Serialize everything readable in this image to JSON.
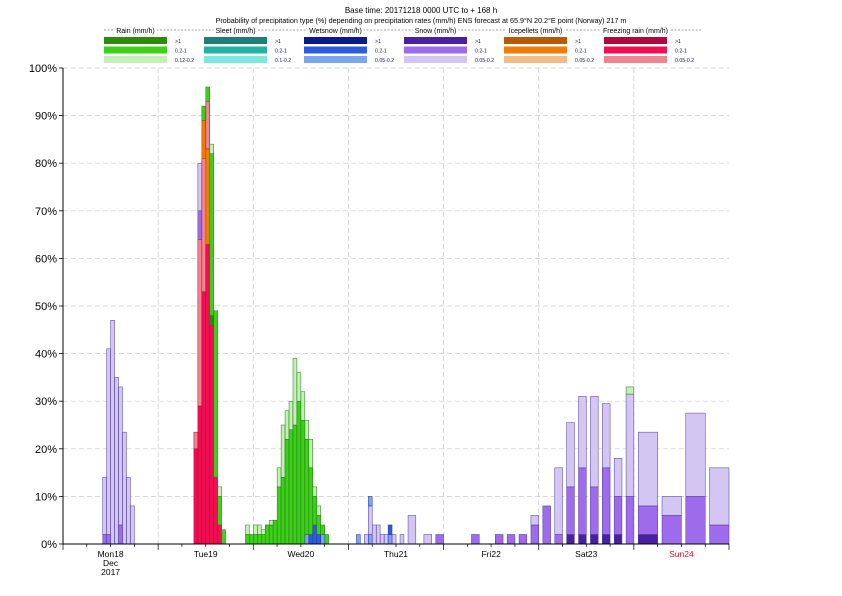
{
  "header": {
    "line1": "Base time: 20171218 0000 UTC to + 168 h",
    "line2": "Probability of precipitation type (%) depending on precipitation rates (mm/h) ENS forecast at 65.9°N  20.2°E point (Norway) 217 m"
  },
  "legend": {
    "groups": [
      {
        "title": "Rain (mm/h)",
        "colors": [
          "#2e8b0a",
          "#3ecf1a",
          "#c4f0b8"
        ],
        "labels": [
          ">1",
          "0.2-1",
          "0.12-0.2"
        ]
      },
      {
        "title": "Sleet (mm/h)",
        "colors": [
          "#1d7f77",
          "#22b2a3",
          "#7fe7dc"
        ],
        "labels": [
          ">1",
          "0.2-1",
          "0.1-0.2"
        ]
      },
      {
        "title": "Wetsnow (mm/h)",
        "colors": [
          "#0a1a8a",
          "#2d5bdc",
          "#7ba5ee"
        ],
        "labels": [
          ">1",
          "0.2-1",
          "0.05-0.2"
        ]
      },
      {
        "title": "Snow (mm/h)",
        "colors": [
          "#4a1fa0",
          "#9d6bec",
          "#d4c6f2"
        ],
        "labels": [
          ">1",
          "0.2-1",
          "0.05-0.2"
        ]
      },
      {
        "title": "Icepellets (mm/h)",
        "colors": [
          "#b85a05",
          "#ef7c0a",
          "#f0bd8a"
        ],
        "labels": [
          ">1",
          "0.2-1",
          "0.05-0.2"
        ]
      },
      {
        "title": "Freezing rain (mm/h)",
        "colors": [
          "#b0083e",
          "#ef0f52",
          "#f0848f"
        ],
        "labels": [
          ">1",
          "0.2-1",
          "0.05-0.2"
        ]
      }
    ]
  },
  "chart_data": {
    "type": "bar",
    "stacked": true,
    "ylim": [
      0,
      100
    ],
    "yticks": [
      "0%",
      "10%",
      "20%",
      "30%",
      "40%",
      "50%",
      "60%",
      "70%",
      "80%",
      "90%",
      "100%"
    ],
    "x_range_hours": [
      0,
      168
    ],
    "day_labels": [
      {
        "hour": 12,
        "lines": [
          "Mon18",
          "Dec",
          "2017"
        ],
        "color": "#000000"
      },
      {
        "hour": 36,
        "lines": [
          "Tue19"
        ],
        "color": "#000000"
      },
      {
        "hour": 60,
        "lines": [
          "Wed20"
        ],
        "color": "#000000"
      },
      {
        "hour": 84,
        "lines": [
          "Thu21"
        ],
        "color": "#000000"
      },
      {
        "hour": 108,
        "lines": [
          "Fri22"
        ],
        "color": "#000000"
      },
      {
        "hour": 132,
        "lines": [
          "Sat23"
        ],
        "color": "#000000"
      },
      {
        "hour": 156,
        "lines": [
          "Sun24"
        ],
        "color": "#d4101a"
      }
    ],
    "grid": true,
    "categories_note": "Bars are forecast steps; each bar has stacked segments [category, intensity, value%]",
    "bars": [
      {
        "t": 11,
        "w": 1,
        "s": [
          [
            "snow",
            0,
            0
          ],
          [
            "snow",
            1,
            2
          ],
          [
            "snow",
            2,
            12
          ]
        ]
      },
      {
        "t": 12,
        "w": 1,
        "s": [
          [
            "snow",
            1,
            2
          ],
          [
            "snow",
            2,
            39
          ]
        ]
      },
      {
        "t": 13,
        "w": 1,
        "s": [
          [
            "snow",
            2,
            47
          ]
        ]
      },
      {
        "t": 14,
        "w": 1,
        "s": [
          [
            "snow",
            2,
            35
          ]
        ]
      },
      {
        "t": 15,
        "w": 1,
        "s": [
          [
            "snow",
            1,
            4
          ],
          [
            "snow",
            2,
            29
          ]
        ]
      },
      {
        "t": 16,
        "w": 1,
        "s": [
          [
            "snow",
            2,
            23.5
          ]
        ]
      },
      {
        "t": 17,
        "w": 1,
        "s": [
          [
            "snow",
            2,
            14
          ]
        ]
      },
      {
        "t": 18,
        "w": 1,
        "s": [
          [
            "snow",
            2,
            8
          ]
        ]
      },
      {
        "t": 34,
        "w": 1,
        "s": [
          [
            "freezing",
            1,
            20
          ],
          [
            "freezing",
            2,
            3.5
          ]
        ]
      },
      {
        "t": 35,
        "w": 1,
        "s": [
          [
            "freezing",
            1,
            29
          ],
          [
            "freezing",
            2,
            35
          ],
          [
            "snow",
            1,
            6
          ],
          [
            "snow",
            2,
            10
          ]
        ]
      },
      {
        "t": 36,
        "w": 1,
        "s": [
          [
            "freezing",
            1,
            53
          ],
          [
            "freezing",
            2,
            28
          ],
          [
            "icepellets",
            1,
            8
          ],
          [
            "rain",
            1,
            3
          ]
        ]
      },
      {
        "t": 37,
        "w": 1,
        "s": [
          [
            "freezing",
            1,
            63
          ],
          [
            "icepellets",
            1,
            20
          ],
          [
            "freezing",
            2,
            10
          ],
          [
            "rain",
            1,
            3
          ]
        ]
      },
      {
        "t": 38,
        "w": 1,
        "s": [
          [
            "freezing",
            1,
            46
          ],
          [
            "rain",
            0,
            2
          ],
          [
            "rain",
            1,
            34
          ],
          [
            "rain",
            2,
            2
          ]
        ]
      },
      {
        "t": 39,
        "w": 1,
        "s": [
          [
            "freezing",
            1,
            14
          ],
          [
            "rain",
            1,
            35
          ],
          [
            "rain",
            2,
            0
          ]
        ]
      },
      {
        "t": 40,
        "w": 1,
        "s": [
          [
            "freezing",
            1,
            4
          ],
          [
            "rain",
            1,
            6
          ],
          [
            "rain",
            2,
            2
          ]
        ]
      },
      {
        "t": 41,
        "w": 1,
        "s": [
          [
            "rain",
            1,
            3
          ]
        ]
      },
      {
        "t": 47,
        "w": 1,
        "s": [
          [
            "rain",
            1,
            2
          ],
          [
            "rain",
            2,
            2
          ]
        ]
      },
      {
        "t": 48,
        "w": 1,
        "s": [
          [
            "rain",
            1,
            2
          ]
        ]
      },
      {
        "t": 49,
        "w": 1,
        "s": [
          [
            "rain",
            1,
            2
          ],
          [
            "rain",
            2,
            2
          ]
        ]
      },
      {
        "t": 50,
        "w": 1,
        "s": [
          [
            "rain",
            1,
            2
          ],
          [
            "rain",
            2,
            2
          ]
        ]
      },
      {
        "t": 51,
        "w": 1,
        "s": [
          [
            "rain",
            1,
            2
          ],
          [
            "rain",
            2,
            1
          ]
        ]
      },
      {
        "t": 52,
        "w": 1,
        "s": [
          [
            "rain",
            1,
            4
          ]
        ]
      },
      {
        "t": 53,
        "w": 1,
        "s": [
          [
            "rain",
            1,
            4
          ],
          [
            "rain",
            2,
            1
          ]
        ]
      },
      {
        "t": 54,
        "w": 1,
        "s": [
          [
            "rain",
            1,
            5
          ],
          [
            "rain",
            2,
            0
          ]
        ]
      },
      {
        "t": 55,
        "w": 1,
        "s": [
          [
            "rain",
            1,
            12
          ],
          [
            "rain",
            2,
            4
          ]
        ]
      },
      {
        "t": 56,
        "w": 1,
        "s": [
          [
            "rain",
            1,
            14
          ],
          [
            "rain",
            2,
            11
          ]
        ]
      },
      {
        "t": 57,
        "w": 1,
        "s": [
          [
            "rain",
            1,
            22
          ],
          [
            "rain",
            2,
            6
          ]
        ]
      },
      {
        "t": 58,
        "w": 1,
        "s": [
          [
            "rain",
            1,
            24
          ],
          [
            "rain",
            2,
            6
          ]
        ]
      },
      {
        "t": 59,
        "w": 1,
        "s": [
          [
            "rain",
            1,
            25
          ],
          [
            "rain",
            2,
            14
          ]
        ]
      },
      {
        "t": 60,
        "w": 1,
        "s": [
          [
            "rain",
            1,
            30
          ],
          [
            "rain",
            2,
            6
          ]
        ]
      },
      {
        "t": 61,
        "w": 1,
        "s": [
          [
            "rain",
            1,
            26
          ],
          [
            "rain",
            2,
            6
          ]
        ]
      },
      {
        "t": 62,
        "w": 1,
        "s": [
          [
            "wetsnow",
            2,
            2
          ],
          [
            "rain",
            1,
            20
          ],
          [
            "rain",
            2,
            4
          ]
        ]
      },
      {
        "t": 63,
        "w": 1,
        "s": [
          [
            "wetsnow",
            1,
            2
          ],
          [
            "rain",
            1,
            14
          ],
          [
            "rain",
            2,
            6
          ]
        ]
      },
      {
        "t": 64,
        "w": 1,
        "s": [
          [
            "wetsnow",
            1,
            4
          ],
          [
            "rain",
            1,
            6
          ],
          [
            "rain",
            2,
            2
          ]
        ]
      },
      {
        "t": 65,
        "w": 1,
        "s": [
          [
            "wetsnow",
            1,
            2
          ],
          [
            "rain",
            1,
            4
          ],
          [
            "rain",
            2,
            2
          ]
        ]
      },
      {
        "t": 66,
        "w": 1,
        "s": [
          [
            "wetsnow",
            2,
            2
          ],
          [
            "rain",
            1,
            2
          ]
        ]
      },
      {
        "t": 67,
        "w": 1,
        "s": [
          [
            "rain",
            1,
            2
          ]
        ]
      },
      {
        "t": 75,
        "w": 1,
        "s": [
          [
            "wetsnow",
            2,
            2
          ]
        ]
      },
      {
        "t": 77,
        "w": 1,
        "s": [
          [
            "snow",
            2,
            2
          ]
        ]
      },
      {
        "t": 78,
        "w": 1,
        "s": [
          [
            "wetsnow",
            2,
            2
          ],
          [
            "snow",
            2,
            6
          ],
          [
            "wetsnow",
            2,
            2
          ]
        ]
      },
      {
        "t": 79,
        "w": 1,
        "s": [
          [
            "snow",
            2,
            4
          ]
        ]
      },
      {
        "t": 80,
        "w": 1,
        "s": [
          [
            "snow",
            2,
            4
          ]
        ]
      },
      {
        "t": 81,
        "w": 1,
        "s": [
          [
            "snow",
            2,
            2
          ]
        ]
      },
      {
        "t": 82,
        "w": 1,
        "s": [
          [
            "snow",
            2,
            2
          ]
        ]
      },
      {
        "t": 83,
        "w": 1,
        "s": [
          [
            "wetsnow",
            2,
            2
          ],
          [
            "wetsnow",
            1,
            2
          ]
        ]
      },
      {
        "t": 84,
        "w": 1,
        "s": [
          [
            "snow",
            2,
            2
          ]
        ]
      },
      {
        "t": 86,
        "w": 1,
        "s": [
          [
            "snow",
            2,
            2
          ]
        ]
      },
      {
        "t": 89,
        "w": 2,
        "s": [
          [
            "snow",
            2,
            6
          ]
        ]
      },
      {
        "t": 93,
        "w": 2,
        "s": [
          [
            "snow",
            2,
            2
          ]
        ]
      },
      {
        "t": 96,
        "w": 2,
        "s": [
          [
            "snow",
            1,
            2
          ]
        ]
      },
      {
        "t": 105,
        "w": 2,
        "s": [
          [
            "snow",
            1,
            2
          ]
        ]
      },
      {
        "t": 111,
        "w": 2,
        "s": [
          [
            "snow",
            1,
            2
          ]
        ]
      },
      {
        "t": 114,
        "w": 2,
        "s": [
          [
            "snow",
            1,
            2
          ]
        ]
      },
      {
        "t": 117,
        "w": 2,
        "s": [
          [
            "snow",
            1,
            2
          ]
        ]
      },
      {
        "t": 120,
        "w": 2,
        "s": [
          [
            "snow",
            1,
            4
          ],
          [
            "snow",
            2,
            2
          ]
        ]
      },
      {
        "t": 123,
        "w": 2,
        "s": [
          [
            "snow",
            1,
            8
          ]
        ]
      },
      {
        "t": 126,
        "w": 2,
        "s": [
          [
            "snow",
            1,
            2
          ],
          [
            "snow",
            2,
            14
          ]
        ]
      },
      {
        "t": 129,
        "w": 2,
        "s": [
          [
            "snow",
            0,
            2
          ],
          [
            "snow",
            1,
            10
          ],
          [
            "snow",
            2,
            13.5
          ]
        ]
      },
      {
        "t": 132,
        "w": 2,
        "s": [
          [
            "snow",
            0,
            2
          ],
          [
            "snow",
            1,
            14
          ],
          [
            "snow",
            2,
            15
          ]
        ]
      },
      {
        "t": 135,
        "w": 2,
        "s": [
          [
            "snow",
            0,
            2
          ],
          [
            "snow",
            1,
            10
          ],
          [
            "snow",
            2,
            19
          ]
        ]
      },
      {
        "t": 138,
        "w": 2,
        "s": [
          [
            "snow",
            0,
            2
          ],
          [
            "snow",
            1,
            14
          ],
          [
            "snow",
            2,
            13.5
          ]
        ]
      },
      {
        "t": 141,
        "w": 2,
        "s": [
          [
            "snow",
            0,
            2
          ],
          [
            "snow",
            1,
            8
          ],
          [
            "snow",
            2,
            8
          ]
        ]
      },
      {
        "t": 144,
        "w": 2,
        "s": [
          [
            "snow",
            0,
            0
          ],
          [
            "snow",
            1,
            10
          ],
          [
            "snow",
            2,
            21.5
          ],
          [
            "rain",
            2,
            1.5
          ]
        ]
      },
      {
        "t": 150,
        "w": 5,
        "s": [
          [
            "snow",
            0,
            2
          ],
          [
            "snow",
            1,
            6
          ],
          [
            "snow",
            2,
            15.5
          ]
        ]
      },
      {
        "t": 156,
        "w": 5,
        "s": [
          [
            "snow",
            1,
            6
          ],
          [
            "snow",
            2,
            4
          ]
        ]
      },
      {
        "t": 162,
        "w": 5,
        "s": [
          [
            "snow",
            1,
            10
          ],
          [
            "snow",
            2,
            17.5
          ]
        ]
      },
      {
        "t": 168,
        "w": 5,
        "s": [
          [
            "snow",
            1,
            4
          ],
          [
            "snow",
            2,
            12
          ]
        ]
      }
    ]
  }
}
